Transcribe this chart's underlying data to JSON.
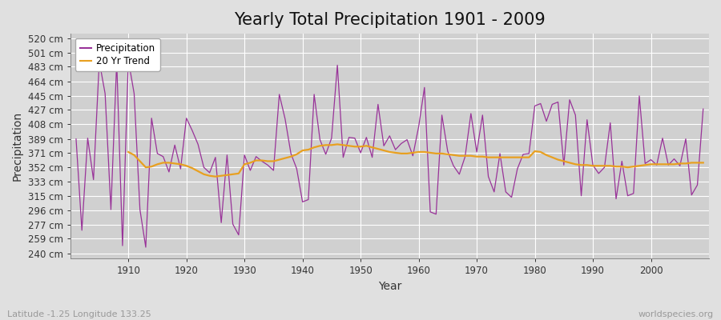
{
  "title": "Yearly Total Precipitation 1901 - 2009",
  "xlabel": "Year",
  "ylabel": "Precipitation",
  "subtitle": "Latitude -1.25 Longitude 133.25",
  "watermark": "worldspecies.org",
  "years": [
    1901,
    1902,
    1903,
    1904,
    1905,
    1906,
    1907,
    1908,
    1909,
    1910,
    1911,
    1912,
    1913,
    1914,
    1915,
    1916,
    1917,
    1918,
    1919,
    1920,
    1921,
    1922,
    1923,
    1924,
    1925,
    1926,
    1927,
    1928,
    1929,
    1930,
    1931,
    1932,
    1933,
    1934,
    1935,
    1936,
    1937,
    1938,
    1939,
    1940,
    1941,
    1942,
    1943,
    1944,
    1945,
    1946,
    1947,
    1948,
    1949,
    1950,
    1951,
    1952,
    1953,
    1954,
    1955,
    1956,
    1957,
    1958,
    1959,
    1960,
    1961,
    1962,
    1963,
    1964,
    1965,
    1966,
    1967,
    1968,
    1969,
    1970,
    1971,
    1972,
    1973,
    1974,
    1975,
    1976,
    1977,
    1978,
    1979,
    1980,
    1981,
    1982,
    1983,
    1984,
    1985,
    1986,
    1987,
    1988,
    1989,
    1990,
    1991,
    1992,
    1993,
    1994,
    1995,
    1996,
    1997,
    1998,
    1999,
    2000,
    2001,
    2002,
    2003,
    2004,
    2005,
    2006,
    2007,
    2008,
    2009
  ],
  "precip": [
    389,
    270,
    390,
    336,
    490,
    448,
    297,
    490,
    250,
    492,
    448,
    297,
    248,
    416,
    370,
    366,
    346,
    381,
    350,
    416,
    400,
    382,
    352,
    345,
    365,
    280,
    368,
    278,
    264,
    368,
    348,
    366,
    360,
    355,
    348,
    447,
    415,
    370,
    350,
    307,
    310,
    447,
    388,
    369,
    390,
    485,
    365,
    391,
    390,
    371,
    391,
    365,
    434,
    380,
    393,
    375,
    383,
    388,
    367,
    405,
    456,
    294,
    291,
    420,
    373,
    354,
    343,
    366,
    422,
    372,
    420,
    340,
    320,
    370,
    320,
    313,
    350,
    369,
    370,
    432,
    435,
    412,
    434,
    437,
    355,
    440,
    420,
    315,
    414,
    355,
    344,
    352,
    410,
    311,
    360,
    315,
    318,
    445,
    357,
    362,
    355,
    390,
    355,
    363,
    354,
    389,
    316,
    329,
    428
  ],
  "trend": [
    null,
    null,
    null,
    null,
    null,
    null,
    null,
    null,
    null,
    372,
    368,
    360,
    352,
    353,
    356,
    358,
    358,
    357,
    356,
    354,
    351,
    347,
    343,
    341,
    340,
    341,
    342,
    343,
    344,
    356,
    358,
    361,
    361,
    360,
    360,
    362,
    364,
    366,
    369,
    374,
    375,
    378,
    380,
    381,
    381,
    382,
    381,
    380,
    379,
    379,
    380,
    378,
    376,
    374,
    372,
    371,
    370,
    370,
    371,
    372,
    372,
    371,
    370,
    370,
    369,
    368,
    367,
    367,
    367,
    366,
    366,
    365,
    365,
    365,
    365,
    365,
    365,
    365,
    365,
    373,
    372,
    368,
    365,
    362,
    360,
    358,
    356,
    355,
    355,
    354,
    354,
    354,
    354,
    353,
    353,
    352,
    353,
    354,
    355,
    356,
    356,
    356,
    356,
    356,
    357,
    357,
    358,
    358,
    358
  ],
  "precip_color": "#993399",
  "trend_color": "#E8A020",
  "fig_bg_color": "#E0E0E0",
  "plot_bg_color": "#D0D0D0",
  "grid_color": "#FFFFFF",
  "yticks": [
    240,
    259,
    277,
    296,
    315,
    333,
    352,
    371,
    389,
    408,
    427,
    445,
    464,
    483,
    501,
    520
  ],
  "ylim": [
    233,
    526
  ],
  "xlim": [
    1900,
    2010
  ],
  "xticks": [
    1910,
    1920,
    1930,
    1940,
    1950,
    1960,
    1970,
    1980,
    1990,
    2000
  ],
  "title_fontsize": 15,
  "axis_label_fontsize": 10,
  "tick_fontsize": 8.5
}
